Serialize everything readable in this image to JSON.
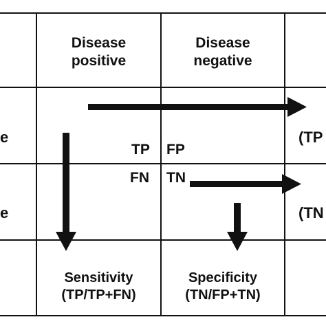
{
  "header": {
    "col1_line1": "Disease",
    "col1_line2": "positive",
    "col2_line1": "Disease",
    "col2_line2": "negative"
  },
  "rows": {
    "row1_label_fragment": "e",
    "row2_label_fragment": "e",
    "row1_right_fragment": "(TP",
    "row2_right_fragment": "(TN"
  },
  "cells": {
    "tp": "TP",
    "fp": "FP",
    "fn": "FN",
    "tn": "TN"
  },
  "footer": {
    "sensitivity_title": "Sensitivity",
    "sensitivity_formula": "(TP/TP+FN)",
    "specificity_title": "Specificity",
    "specificity_formula": "(TN/FP+TN)"
  },
  "colors": {
    "line": "#111111",
    "arrow": "#111111",
    "background": "#ffffff"
  }
}
